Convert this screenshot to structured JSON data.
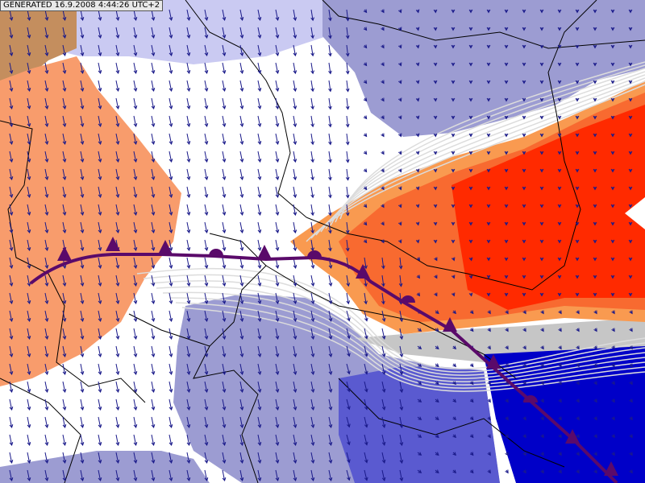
{
  "header": {
    "generated": "GENERATED 16.9.2008 4:44:26 UTC+2"
  }
}
